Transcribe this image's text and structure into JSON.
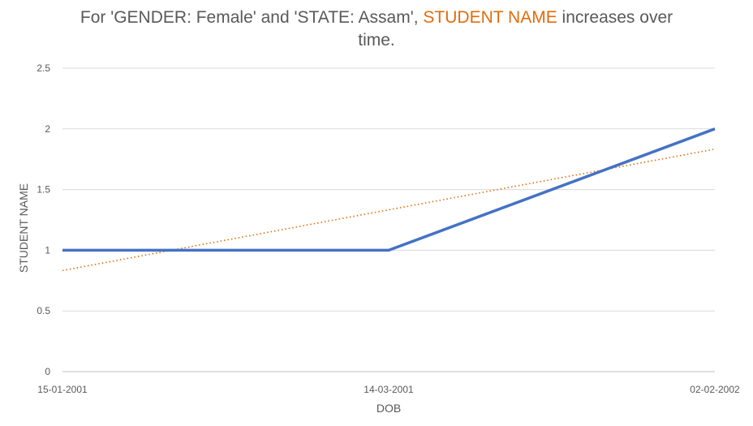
{
  "title": {
    "prefix": "For 'GENDER: Female' and 'STATE: Assam', ",
    "highlight": "STUDENT NAME",
    "suffix": " increases over",
    "line2": "time.",
    "highlight_color": "#e36c0a"
  },
  "chart_data": {
    "type": "line",
    "xlabel": "DOB",
    "ylabel": "STUDENT NAME",
    "categories": [
      "15-01-2001",
      "14-03-2001",
      "02-02-2002"
    ],
    "ylim": [
      0,
      2.5
    ],
    "yticks": [
      "0",
      "0.5",
      "1",
      "1.5",
      "2",
      "2.5"
    ],
    "grid": true,
    "series": [
      {
        "values": [
          1,
          1,
          2
        ],
        "color": "#4472c4"
      }
    ],
    "trendline": {
      "type": "linear",
      "values": [
        0.833,
        1.333,
        1.833
      ],
      "color": "#e36c0a",
      "style": "dotted"
    }
  }
}
